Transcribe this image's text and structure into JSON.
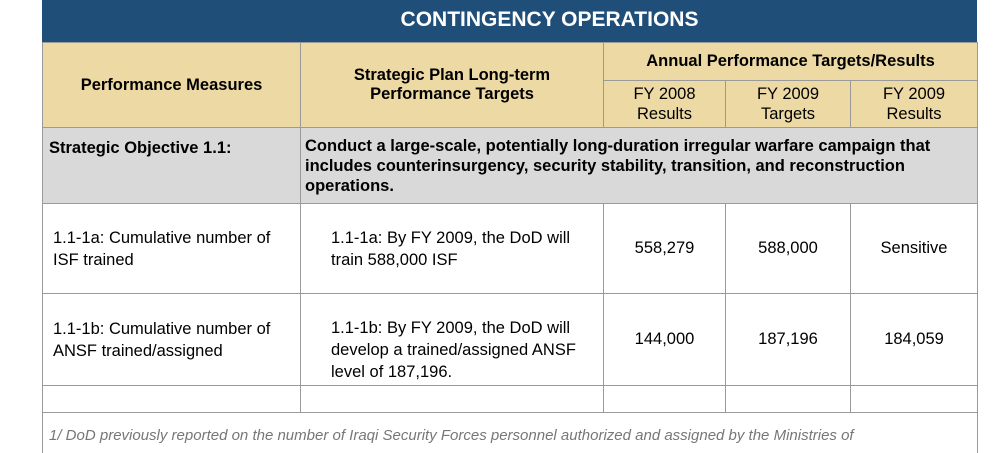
{
  "header": {
    "title": "CONTINGENCY OPERATIONS"
  },
  "table": {
    "headers": {
      "performance_measures": "Performance Measures",
      "long_term": "Strategic Plan Long-term Performance Targets",
      "annual": "Annual Performance Targets/Results",
      "sub": [
        "FY 2008\nResults",
        "FY 2009\nTargets",
        "FY 2009\nResults"
      ]
    },
    "objective": {
      "label": "Strategic Objective 1.1:",
      "text": "Conduct a large-scale, potentially long-duration irregular warfare campaign that includes counterinsurgency, security stability, transition, and reconstruction operations."
    },
    "rows": [
      [
        "1.1-1a: Cumulative number of ISF trained",
        "1.1-1a: By FY 2009, the DoD will train 588,000 ISF",
        "558,279",
        "588,000",
        "Sensitive"
      ],
      [
        "1.1-1b: Cumulative number of ANSF trained/assigned",
        "1.1-1b: By FY 2009, the DoD will develop a trained/assigned ANSF level of 187,196.",
        "144,000",
        "187,196",
        "184,059"
      ]
    ]
  },
  "footnote": "1/ DoD previously reported on the number of Iraqi Security Forces personnel authorized and assigned by the Ministries of"
}
